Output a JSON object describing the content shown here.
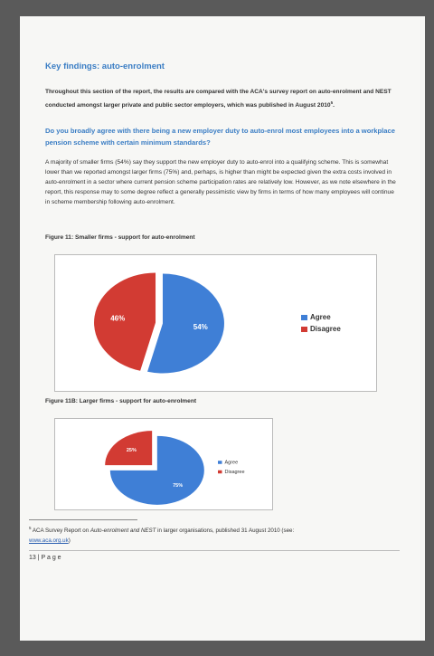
{
  "heading": "Key findings: auto-enrolment",
  "intro": {
    "text": "Throughout this section of the report, the results are compared with the ACA's survey report on auto-enrolment and NEST conducted amongst larger private and public sector employers, which was published in August 2010",
    "footnote_ref": "5",
    "end": "."
  },
  "question": "Do you broadly agree with there being a new employer duty to auto-enrol most employees into a workplace pension scheme with certain minimum standards?",
  "body": "A majority of smaller firms (54%) say they support the new employer duty to auto-enrol into a qualifying scheme. This is somewhat lower than we reported amongst larger firms (75%) and, perhaps, is higher than might be expected given the extra costs involved in auto-enrolment in a sector where current pension scheme participation rates are relatively low. However, as we note elsewhere in the report, this response may to some degree reflect a generally pessimistic view by firms in terms of how many employees will continue in scheme membership following auto-enrolment.",
  "figures": [
    {
      "caption": "Figure 11: Smaller firms - support for auto-enrolment",
      "chart_data": {
        "type": "pie",
        "categories": [
          "Agree",
          "Disagree"
        ],
        "values": [
          54,
          46
        ],
        "value_labels": [
          "54%",
          "46%"
        ],
        "colors": [
          "#3f7fd6",
          "#d23b33"
        ],
        "legend": "right"
      }
    },
    {
      "caption": "Figure 11B: Larger firms - support for auto-enrolment",
      "chart_data": {
        "type": "pie",
        "categories": [
          "Agree",
          "Disagree"
        ],
        "values": [
          75,
          25
        ],
        "value_labels": [
          "75%",
          "25%"
        ],
        "colors": [
          "#3f7fd6",
          "#d23b33"
        ],
        "legend": "right"
      }
    }
  ],
  "footnote": {
    "number": "5",
    "before": "ACA Survey Report on ",
    "italic": "Auto-enrolment and NEST",
    "after": " in larger organisations, published 31 August 2010 (see: ",
    "link": "www.aca.org.uk",
    "close": ")"
  },
  "page_number": "13 | P a g e"
}
